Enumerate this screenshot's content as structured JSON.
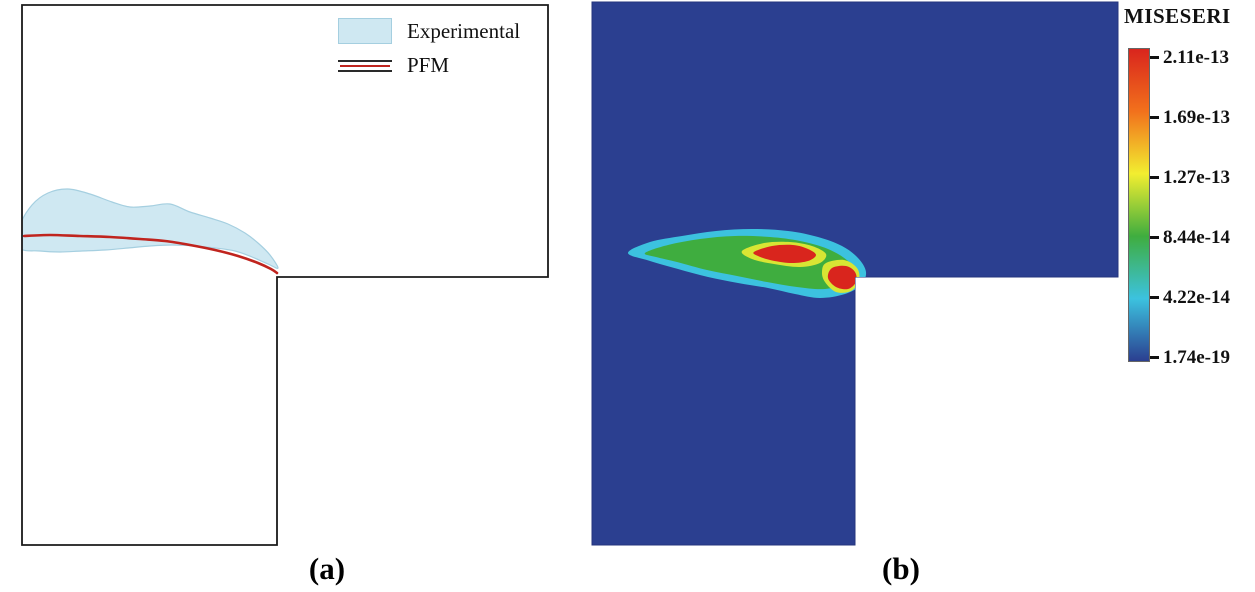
{
  "chart_data": [
    {
      "id": "panel_a",
      "type": "line",
      "label": "(a)",
      "legend": [
        {
          "name": "Experimental",
          "style": "area",
          "fill": "#cfe8f2",
          "edge": "#a5cfe0"
        },
        {
          "name": "PFM",
          "style": "line",
          "stroke": "#c0241e"
        }
      ],
      "domain_outline": [
        [
          22,
          5
        ],
        [
          548,
          5
        ],
        [
          548,
          277
        ],
        [
          277,
          277
        ],
        [
          277,
          545
        ],
        [
          22,
          545
        ]
      ],
      "experimental_region": [
        [
          20,
          226
        ],
        [
          32,
          205
        ],
        [
          48,
          193
        ],
        [
          68,
          189
        ],
        [
          90,
          194
        ],
        [
          112,
          202
        ],
        [
          130,
          207
        ],
        [
          150,
          206
        ],
        [
          170,
          204
        ],
        [
          190,
          212
        ],
        [
          210,
          218
        ],
        [
          228,
          224
        ],
        [
          245,
          233
        ],
        [
          258,
          243
        ],
        [
          270,
          255
        ],
        [
          278,
          268
        ],
        [
          268,
          264
        ],
        [
          252,
          257
        ],
        [
          235,
          251
        ],
        [
          215,
          248
        ],
        [
          195,
          246
        ],
        [
          172,
          245
        ],
        [
          150,
          246
        ],
        [
          128,
          248
        ],
        [
          105,
          250
        ],
        [
          82,
          251
        ],
        [
          60,
          252
        ],
        [
          40,
          251
        ],
        [
          20,
          248
        ]
      ],
      "pfm_path": [
        [
          24,
          236
        ],
        [
          50,
          235
        ],
        [
          80,
          236
        ],
        [
          110,
          237
        ],
        [
          140,
          239
        ],
        [
          165,
          241
        ],
        [
          190,
          245
        ],
        [
          215,
          250
        ],
        [
          238,
          256
        ],
        [
          258,
          263
        ],
        [
          271,
          269
        ],
        [
          277,
          273
        ]
      ]
    },
    {
      "id": "panel_b",
      "type": "heatmap",
      "label": "(b)",
      "field_color": "#2b3f90",
      "domain_outline": [
        [
          592,
          2
        ],
        [
          1118,
          2
        ],
        [
          1118,
          277
        ],
        [
          855,
          277
        ],
        [
          855,
          545
        ],
        [
          592,
          545
        ]
      ],
      "colorbar": {
        "title": "MISESERI",
        "ticks": [
          "2.11e-13",
          "1.69e-13",
          "1.27e-13",
          "8.44e-14",
          "4.22e-14",
          "1.74e-19"
        ],
        "colors": [
          "#d9251d",
          "#f2711c",
          "#f2ee30",
          "#3fad3f",
          "#3cc2df",
          "#2b3f90"
        ]
      },
      "contours": [
        {
          "level": "1",
          "color": "#3cc2df",
          "points": [
            [
              628,
              253
            ],
            [
              650,
              242
            ],
            [
              682,
              236
            ],
            [
              716,
              231
            ],
            [
              752,
              229
            ],
            [
              788,
              231
            ],
            [
              818,
              237
            ],
            [
              842,
              246
            ],
            [
              858,
              258
            ],
            [
              866,
              272
            ],
            [
              861,
              285
            ],
            [
              845,
              294
            ],
            [
              820,
              298
            ],
            [
              795,
              294
            ],
            [
              768,
              288
            ],
            [
              738,
              283
            ],
            [
              708,
              277
            ],
            [
              678,
              269
            ],
            [
              650,
              261
            ]
          ]
        },
        {
          "level": "2",
          "color": "#3fad3f",
          "points": [
            [
              645,
              253
            ],
            [
              668,
              245
            ],
            [
              700,
              239
            ],
            [
              735,
              236
            ],
            [
              770,
              237
            ],
            [
              800,
              241
            ],
            [
              828,
              249
            ],
            [
              848,
              261
            ],
            [
              853,
              272
            ],
            [
              846,
              283
            ],
            [
              825,
              289
            ],
            [
              797,
              287
            ],
            [
              767,
              282
            ],
            [
              737,
              276
            ],
            [
              707,
              270
            ],
            [
              677,
              262
            ],
            [
              656,
              257
            ]
          ]
        },
        {
          "level": "3",
          "color": "#d8e534",
          "points": [
            [
              742,
              251
            ],
            [
              764,
              243
            ],
            [
              790,
              242
            ],
            [
              812,
              246
            ],
            [
              826,
              254
            ],
            [
              820,
              263
            ],
            [
              800,
              267
            ],
            [
              774,
              264
            ],
            [
              752,
              259
            ]
          ]
        },
        {
          "level": "3b",
          "color": "#d8e534",
          "points": [
            [
              826,
              263
            ],
            [
              844,
              260
            ],
            [
              857,
              268
            ],
            [
              859,
              280
            ],
            [
              851,
              291
            ],
            [
              836,
              292
            ],
            [
              825,
              282
            ],
            [
              822,
              272
            ]
          ]
        },
        {
          "level": "4",
          "color": "#d9251d",
          "points": [
            [
              754,
              252
            ],
            [
              772,
              246
            ],
            [
              793,
              245
            ],
            [
              808,
              249
            ],
            [
              816,
              255
            ],
            [
              808,
              261
            ],
            [
              790,
              263
            ],
            [
              770,
              260
            ],
            [
              758,
              256
            ]
          ]
        },
        {
          "level": "4b",
          "color": "#d9251d",
          "points": [
            [
              832,
              268
            ],
            [
              846,
              266
            ],
            [
              855,
              272
            ],
            [
              856,
              282
            ],
            [
              848,
              289
            ],
            [
              836,
              287
            ],
            [
              828,
              278
            ]
          ]
        }
      ]
    }
  ]
}
